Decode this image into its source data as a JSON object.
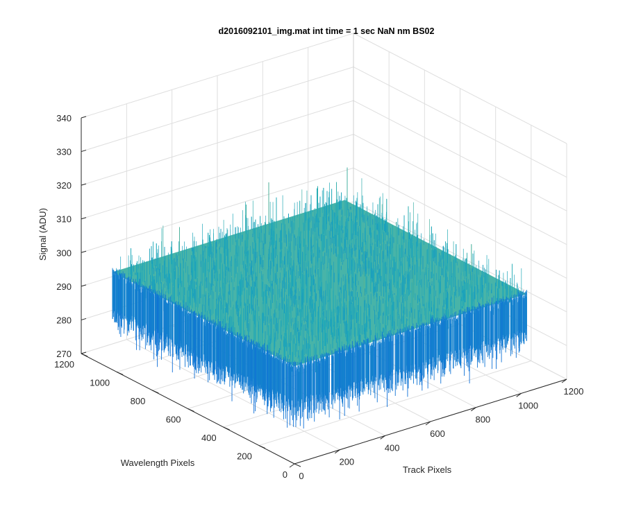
{
  "figure": {
    "title": "d2016092101_img.mat int time = 1 sec  NaN nm BS02"
  },
  "chart_data": {
    "type": "surface",
    "title": "d2016092101_img.mat int time = 1 sec  NaN nm BS02",
    "xlabel": "Track Pixels",
    "ylabel": "Wavelength Pixels",
    "zlabel": "Signal (ADU)",
    "xlim": [
      0,
      1200
    ],
    "ylim": [
      0,
      1200
    ],
    "zlim": [
      270,
      340
    ],
    "x_ticks": [
      "0",
      "200",
      "400",
      "600",
      "800",
      "1000",
      "1200"
    ],
    "y_ticks": [
      "0",
      "200",
      "400",
      "600",
      "800",
      "1000",
      "1200"
    ],
    "z_ticks": [
      "270",
      "280",
      "290",
      "300",
      "310",
      "320",
      "330",
      "340"
    ],
    "grid": true,
    "colormap": "parula",
    "surface_extent": {
      "x": [
        0,
        1024
      ],
      "y": [
        0,
        1024
      ]
    },
    "signal_mean": 295,
    "signal_range": [
      279,
      328
    ],
    "colors": {
      "low": "#0f6fd8",
      "mid": "#1faab8",
      "high": "#b6c45a",
      "axis": "#262626",
      "grid": "#dedede"
    }
  }
}
